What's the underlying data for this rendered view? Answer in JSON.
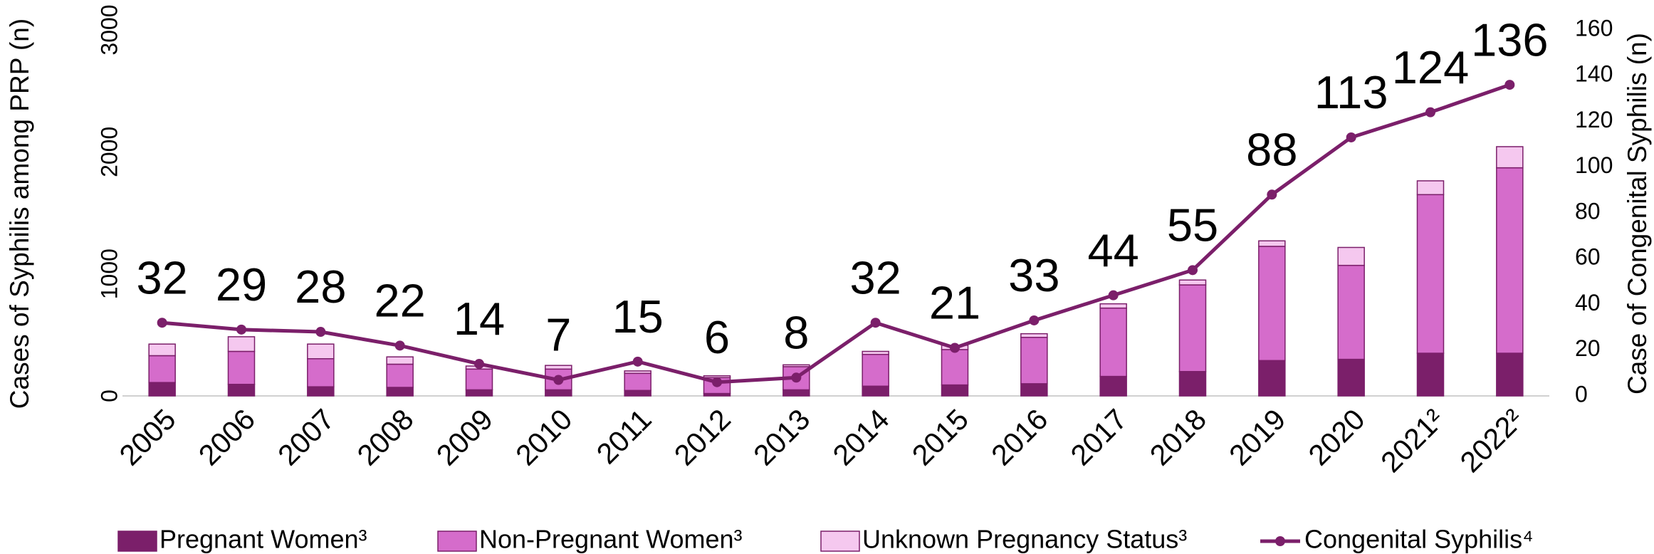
{
  "chart_data": {
    "type": "bar_line",
    "categories": [
      "2005",
      "2006",
      "2007",
      "2008",
      "2009",
      "2010",
      "2011",
      "2012",
      "2013",
      "2014",
      "2015",
      "2016",
      "2017",
      "2018",
      "2019",
      "2020",
      "2021²",
      "2022²"
    ],
    "series": [
      {
        "name": "Pregnant Women³",
        "color": "#7b1f6a",
        "stack": true,
        "values": [
          110,
          95,
          75,
          70,
          50,
          50,
          45,
          20,
          50,
          80,
          90,
          100,
          160,
          200,
          290,
          300,
          350,
          350
        ]
      },
      {
        "name": "Non-Pregnant Women³",
        "color": "#d56ccb",
        "stack": true,
        "values": [
          220,
          270,
          230,
          190,
          170,
          170,
          140,
          130,
          190,
          260,
          290,
          380,
          560,
          710,
          936,
          770,
          1300,
          1520
        ]
      },
      {
        "name": "Unknown Pregnancy Status³",
        "color": "#f5c8ef",
        "stack": true,
        "values": [
          95,
          120,
          120,
          60,
          25,
          30,
          20,
          15,
          15,
          25,
          35,
          30,
          35,
          40,
          45,
          147,
          113,
          173
        ]
      },
      {
        "name": "Congenital Syphilis⁴",
        "color": "#7b1f6a",
        "axis": "y2",
        "type": "line",
        "values": [
          32,
          29,
          28,
          22,
          14,
          7,
          15,
          6,
          8,
          32,
          21,
          33,
          44,
          55,
          88,
          113,
          124,
          136
        ]
      }
    ],
    "ylabel": "Cases of Syphilis among PRP (n)",
    "y2label": "Case of Congenital Syphilis (n)",
    "ylim": [
      0,
      3000
    ],
    "yticks": [
      0,
      1000,
      2000,
      3000
    ],
    "y2lim": [
      0,
      160
    ],
    "y2ticks": [
      0,
      20,
      40,
      60,
      80,
      100,
      120,
      140,
      160
    ],
    "grid": false,
    "legend": "bottom"
  }
}
